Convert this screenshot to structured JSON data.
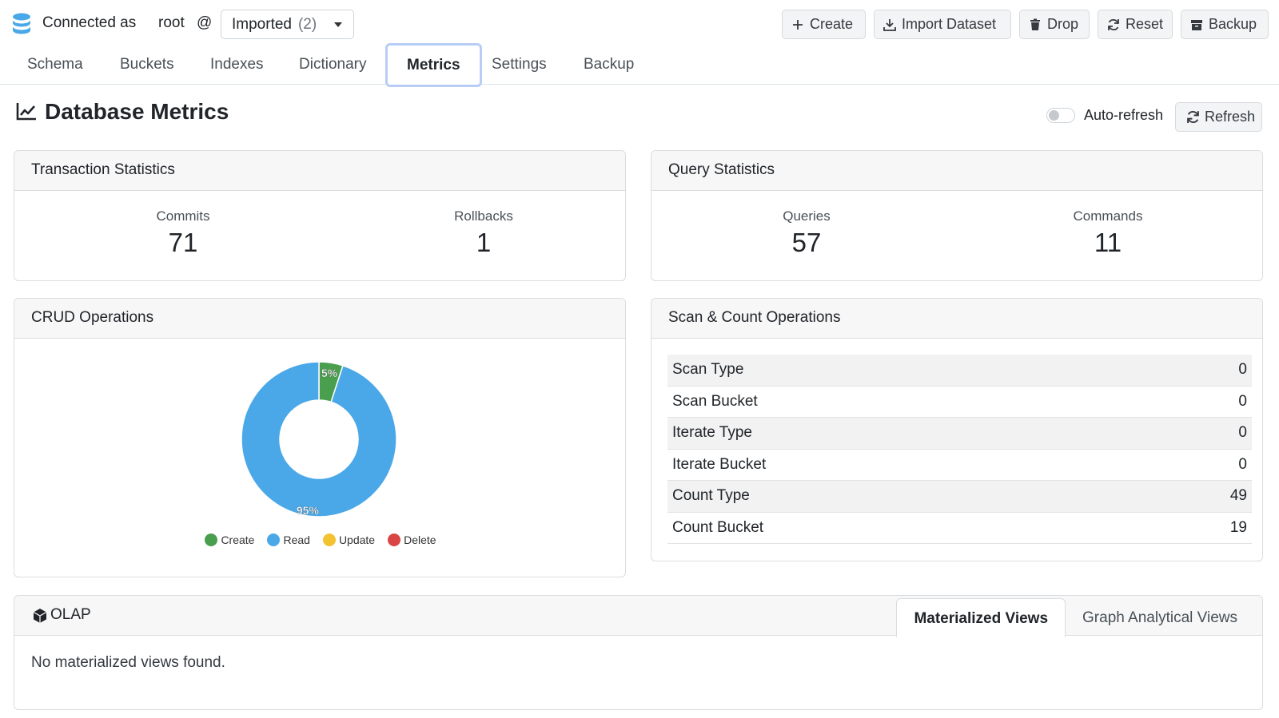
{
  "connection": {
    "label": "Connected as",
    "user": "root",
    "at": "@",
    "database": "Imported",
    "database_count": "(2)"
  },
  "toolbar": {
    "create": "Create",
    "import": "Import Dataset",
    "drop": "Drop",
    "reset": "Reset",
    "backup": "Backup"
  },
  "tabs": [
    "Schema",
    "Buckets",
    "Indexes",
    "Dictionary",
    "Metrics",
    "Settings",
    "Backup"
  ],
  "active_tab": "Metrics",
  "page": {
    "title": "Database Metrics",
    "auto_refresh_label": "Auto-refresh",
    "auto_refresh_on": false,
    "refresh_label": "Refresh"
  },
  "transactions": {
    "title": "Transaction Statistics",
    "commits_label": "Commits",
    "commits": "71",
    "rollbacks_label": "Rollbacks",
    "rollbacks": "1"
  },
  "queries": {
    "title": "Query Statistics",
    "queries_label": "Queries",
    "queries": "57",
    "commands_label": "Commands",
    "commands": "11"
  },
  "crud": {
    "title": "CRUD Operations",
    "legend": [
      "Create",
      "Read",
      "Update",
      "Delete"
    ]
  },
  "chart_data": {
    "type": "pie",
    "categories": [
      "Create",
      "Read",
      "Update",
      "Delete"
    ],
    "values": [
      5,
      95,
      0,
      0
    ],
    "labels": [
      "5%",
      "95%",
      "",
      ""
    ],
    "colors": [
      "#4a9f4e",
      "#4aa8e8",
      "#f2c230",
      "#d94545"
    ],
    "legend_position": "bottom"
  },
  "scan": {
    "title": "Scan & Count Operations",
    "rows": [
      {
        "label": "Scan Type",
        "value": "0"
      },
      {
        "label": "Scan Bucket",
        "value": "0"
      },
      {
        "label": "Iterate Type",
        "value": "0"
      },
      {
        "label": "Iterate Bucket",
        "value": "0"
      },
      {
        "label": "Count Type",
        "value": "49"
      },
      {
        "label": "Count Bucket",
        "value": "19"
      }
    ]
  },
  "olap": {
    "title": "OLAP",
    "tabs": [
      "Materialized Views",
      "Graph Analytical Views"
    ],
    "empty": "No materialized views found."
  }
}
